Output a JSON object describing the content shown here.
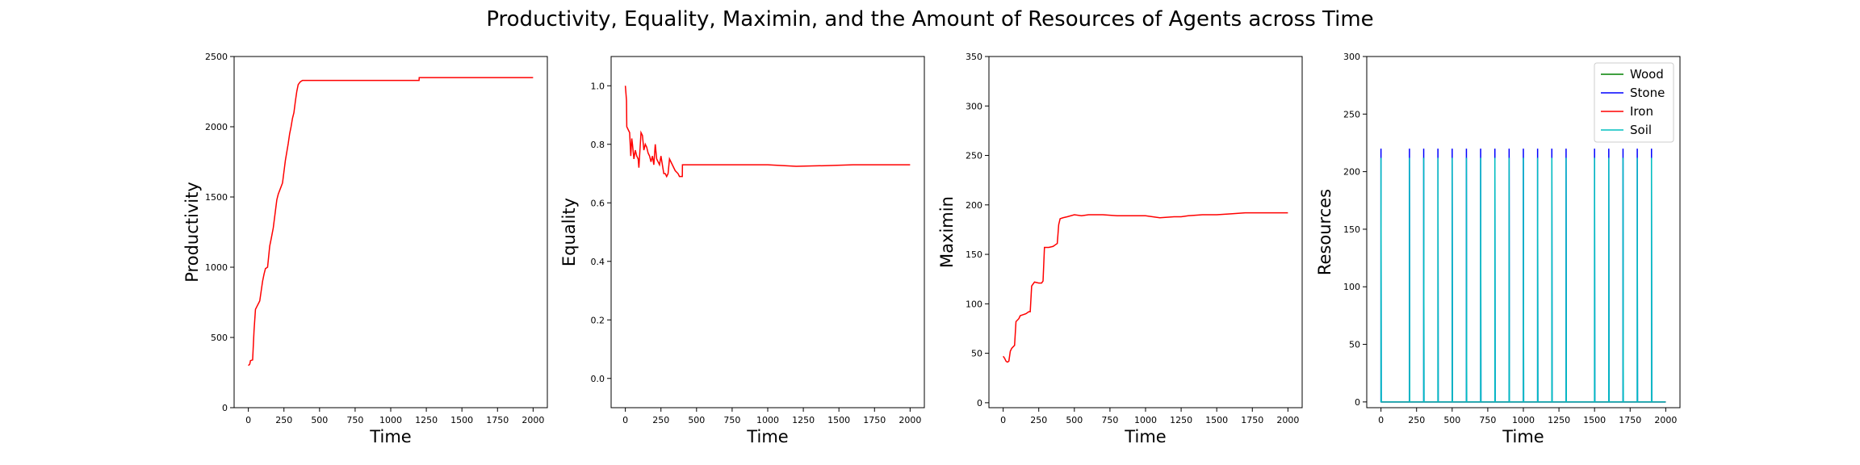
{
  "figure": {
    "title": "Productivity, Equality, Maximin, and the Amount of Resources of Agents across Time"
  },
  "chart_data": [
    {
      "type": "line",
      "title": "",
      "xlabel": "Time",
      "ylabel": "Productivity",
      "xlim": [
        -100,
        2100
      ],
      "ylim": [
        0,
        2500
      ],
      "xticks": [
        0,
        250,
        500,
        750,
        1000,
        1250,
        1500,
        1750,
        2000
      ],
      "yticks": [
        0,
        500,
        1000,
        1500,
        2000,
        2500
      ],
      "series": [
        {
          "color": "#ff0000",
          "points": [
            [
              0,
              300
            ],
            [
              10,
              310
            ],
            [
              15,
              335
            ],
            [
              30,
              340
            ],
            [
              40,
              550
            ],
            [
              50,
              700
            ],
            [
              60,
              720
            ],
            [
              70,
              740
            ],
            [
              80,
              760
            ],
            [
              90,
              830
            ],
            [
              100,
              900
            ],
            [
              110,
              950
            ],
            [
              120,
              990
            ],
            [
              135,
              1000
            ],
            [
              150,
              1150
            ],
            [
              160,
              1200
            ],
            [
              175,
              1280
            ],
            [
              190,
              1400
            ],
            [
              200,
              1480
            ],
            [
              210,
              1520
            ],
            [
              225,
              1560
            ],
            [
              240,
              1600
            ],
            [
              250,
              1680
            ],
            [
              260,
              1760
            ],
            [
              270,
              1820
            ],
            [
              280,
              1880
            ],
            [
              290,
              1950
            ],
            [
              300,
              2000
            ],
            [
              310,
              2060
            ],
            [
              320,
              2100
            ],
            [
              330,
              2180
            ],
            [
              340,
              2250
            ],
            [
              350,
              2300
            ],
            [
              365,
              2320
            ],
            [
              380,
              2330
            ],
            [
              600,
              2330
            ],
            [
              800,
              2330
            ],
            [
              1000,
              2330
            ],
            [
              1199,
              2330
            ],
            [
              1200,
              2350
            ],
            [
              1400,
              2350
            ],
            [
              1700,
              2350
            ],
            [
              2000,
              2350
            ]
          ]
        }
      ]
    },
    {
      "type": "line",
      "title": "",
      "xlabel": "Time",
      "ylabel": "Equality",
      "xlim": [
        -100,
        2100
      ],
      "ylim": [
        -0.1,
        1.1
      ],
      "xticks": [
        0,
        250,
        500,
        750,
        1000,
        1250,
        1500,
        1750,
        2000
      ],
      "yticks": [
        0.0,
        0.2,
        0.4,
        0.6,
        0.8,
        1.0
      ],
      "ytick_labels": [
        "0.0",
        "0.2",
        "0.4",
        "0.6",
        "0.8",
        "1.0"
      ],
      "series": [
        {
          "color": "#ff0000",
          "points": [
            [
              0,
              1.0
            ],
            [
              8,
              0.95
            ],
            [
              10,
              0.86
            ],
            [
              20,
              0.85
            ],
            [
              30,
              0.84
            ],
            [
              38,
              0.76
            ],
            [
              45,
              0.82
            ],
            [
              50,
              0.8
            ],
            [
              60,
              0.75
            ],
            [
              70,
              0.78
            ],
            [
              80,
              0.76
            ],
            [
              90,
              0.75
            ],
            [
              95,
              0.72
            ],
            [
              100,
              0.76
            ],
            [
              110,
              0.84
            ],
            [
              120,
              0.83
            ],
            [
              130,
              0.78
            ],
            [
              140,
              0.8
            ],
            [
              150,
              0.79
            ],
            [
              160,
              0.77
            ],
            [
              170,
              0.76
            ],
            [
              180,
              0.74
            ],
            [
              190,
              0.76
            ],
            [
              200,
              0.73
            ],
            [
              210,
              0.8
            ],
            [
              220,
              0.75
            ],
            [
              240,
              0.73
            ],
            [
              250,
              0.76
            ],
            [
              260,
              0.73
            ],
            [
              270,
              0.7
            ],
            [
              280,
              0.7
            ],
            [
              290,
              0.69
            ],
            [
              300,
              0.7
            ],
            [
              310,
              0.75
            ],
            [
              320,
              0.74
            ],
            [
              340,
              0.72
            ],
            [
              350,
              0.71
            ],
            [
              370,
              0.7
            ],
            [
              380,
              0.69
            ],
            [
              400,
              0.69
            ],
            [
              401,
              0.73
            ],
            [
              600,
              0.73
            ],
            [
              800,
              0.73
            ],
            [
              1000,
              0.73
            ],
            [
              1200,
              0.725
            ],
            [
              1400,
              0.727
            ],
            [
              1600,
              0.73
            ],
            [
              1800,
              0.73
            ],
            [
              2000,
              0.73
            ]
          ]
        }
      ]
    },
    {
      "type": "line",
      "title": "",
      "xlabel": "Time",
      "ylabel": "Maximin",
      "xlim": [
        -100,
        2100
      ],
      "ylim": [
        -5,
        350
      ],
      "xticks": [
        0,
        250,
        500,
        750,
        1000,
        1250,
        1500,
        1750,
        2000
      ],
      "yticks": [
        0,
        50,
        100,
        150,
        200,
        250,
        300,
        350
      ],
      "series": [
        {
          "color": "#ff0000",
          "points": [
            [
              0,
              47
            ],
            [
              10,
              45
            ],
            [
              20,
              42
            ],
            [
              30,
              41
            ],
            [
              40,
              42
            ],
            [
              50,
              52
            ],
            [
              60,
              55
            ],
            [
              80,
              58
            ],
            [
              90,
              82
            ],
            [
              110,
              85
            ],
            [
              120,
              88
            ],
            [
              140,
              89
            ],
            [
              160,
              90
            ],
            [
              180,
              92
            ],
            [
              190,
              92
            ],
            [
              200,
              118
            ],
            [
              220,
              122
            ],
            [
              250,
              121
            ],
            [
              270,
              121
            ],
            [
              280,
              123
            ],
            [
              290,
              157
            ],
            [
              320,
              157
            ],
            [
              350,
              158
            ],
            [
              370,
              160
            ],
            [
              380,
              161
            ],
            [
              390,
              180
            ],
            [
              400,
              186
            ],
            [
              420,
              187
            ],
            [
              450,
              188
            ],
            [
              500,
              190
            ],
            [
              550,
              189
            ],
            [
              600,
              190
            ],
            [
              650,
              190
            ],
            [
              700,
              190
            ],
            [
              800,
              189
            ],
            [
              900,
              189
            ],
            [
              1000,
              189
            ],
            [
              1100,
              187
            ],
            [
              1200,
              188
            ],
            [
              1250,
              188
            ],
            [
              1300,
              189
            ],
            [
              1400,
              190
            ],
            [
              1500,
              190
            ],
            [
              1600,
              191
            ],
            [
              1700,
              192
            ],
            [
              1800,
              192
            ],
            [
              1900,
              192
            ],
            [
              2000,
              192
            ]
          ]
        }
      ]
    },
    {
      "type": "line",
      "title": "",
      "xlabel": "Time",
      "ylabel": "Resources",
      "xlim": [
        -100,
        2100
      ],
      "ylim": [
        -5,
        300
      ],
      "xticks": [
        0,
        250,
        500,
        750,
        1000,
        1250,
        1500,
        1750,
        2000
      ],
      "yticks": [
        0,
        50,
        100,
        150,
        200,
        250,
        300
      ],
      "legend": {
        "location": "upper right",
        "entries": [
          "Wood",
          "Stone",
          "Iron",
          "Soil"
        ]
      },
      "spikes_at": [
        0,
        200,
        300,
        400,
        500,
        600,
        700,
        800,
        900,
        1000,
        1100,
        1200,
        1300,
        1500,
        1600,
        1700,
        1800,
        1900
      ],
      "baseline_end": 2000,
      "series": [
        {
          "name": "Wood",
          "color": "#008000",
          "baseline": 0,
          "peak": 0
        },
        {
          "name": "Stone",
          "color": "#0000ff",
          "baseline": 0,
          "peak": 220
        },
        {
          "name": "Iron",
          "color": "#ff0000",
          "baseline": 0,
          "peak": 0
        },
        {
          "name": "Soil",
          "color": "#00bfbf",
          "baseline": 0,
          "peak": 212
        }
      ]
    }
  ]
}
